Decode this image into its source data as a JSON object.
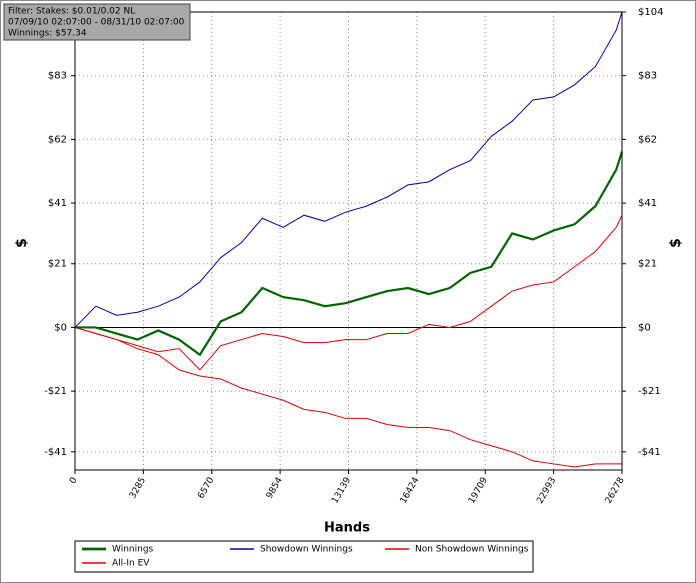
{
  "chart_data": {
    "type": "line",
    "filter_lines": [
      "Filter: Stakes: $0.01/0.02 NL",
      "07/09/10 02:07:00 - 08/31/10 02:07:00",
      "Winnings: $57.34"
    ],
    "x_label": "Hands",
    "y_label": "$",
    "y2_label": "$",
    "x": [
      0,
      1000,
      2000,
      3000,
      4000,
      5000,
      6000,
      7000,
      8000,
      9000,
      10000,
      11000,
      12000,
      13000,
      14000,
      15000,
      16000,
      17000,
      18000,
      19000,
      20000,
      21000,
      22000,
      23000,
      24000,
      25000,
      26000,
      26278
    ],
    "series": [
      {
        "name": "Winnings",
        "color": "#006400",
        "width": 2.2,
        "values": [
          0,
          0,
          -2,
          -4,
          -1,
          -4,
          -9,
          2,
          5,
          13,
          10,
          9,
          7,
          8,
          10,
          12,
          13,
          11,
          13,
          18,
          20,
          31,
          29,
          32,
          34,
          40,
          52,
          58
        ]
      },
      {
        "name": "Showdown Winnings",
        "color": "#0000a8",
        "width": 1,
        "values": [
          0,
          7,
          4,
          5,
          7,
          10,
          15,
          23,
          28,
          36,
          33,
          37,
          35,
          38,
          40,
          43,
          47,
          48,
          52,
          55,
          63,
          68,
          75,
          76,
          80,
          86,
          98,
          104
        ]
      },
      {
        "name": "Non Showdown Winnings",
        "color": "#e00000",
        "width": 1,
        "values": [
          0,
          -2,
          -4,
          -6,
          -8,
          -7,
          -14,
          -6,
          -4,
          -2,
          -3,
          -5,
          -5,
          -4,
          -4,
          -2,
          -2,
          1,
          0,
          2,
          7,
          12,
          14,
          15,
          20,
          25,
          33,
          37
        ]
      },
      {
        "name": "All-In EV",
        "color": "#e00000",
        "width": 1,
        "values": [
          0,
          -2,
          -4,
          -7,
          -9,
          -14,
          -16,
          -17,
          -20,
          -22,
          -24,
          -27,
          -28,
          -30,
          -30,
          -32,
          -33,
          -33,
          -34,
          -37,
          -39,
          -41,
          -44,
          -45,
          -46,
          -45,
          -45,
          -45
        ]
      }
    ],
    "xlim": [
      0,
      26278
    ],
    "xticks": [
      0,
      3285,
      6570,
      9854,
      13139,
      16424,
      19709,
      22993,
      26278
    ],
    "ylim": [
      -47,
      104
    ],
    "yticks": [
      {
        "value": -41,
        "label": "-$41"
      },
      {
        "value": -21,
        "label": "-$21"
      },
      {
        "value": 0,
        "label": "$0"
      },
      {
        "value": 21,
        "label": "$21"
      },
      {
        "value": 41,
        "label": "$41"
      },
      {
        "value": 62,
        "label": "$62"
      },
      {
        "value": 83,
        "label": "$83"
      }
    ],
    "y2lim": [
      -47,
      104
    ],
    "y2ticks": [
      {
        "value": -41,
        "label": "-$41"
      },
      {
        "value": -21,
        "label": "-$21"
      },
      {
        "value": 0,
        "label": "$0"
      },
      {
        "value": 21,
        "label": "$21"
      },
      {
        "value": 41,
        "label": "$41"
      },
      {
        "value": 62,
        "label": "$62"
      },
      {
        "value": 83,
        "label": "$83"
      },
      {
        "value": 104,
        "label": "$104"
      }
    ],
    "grid": true
  }
}
